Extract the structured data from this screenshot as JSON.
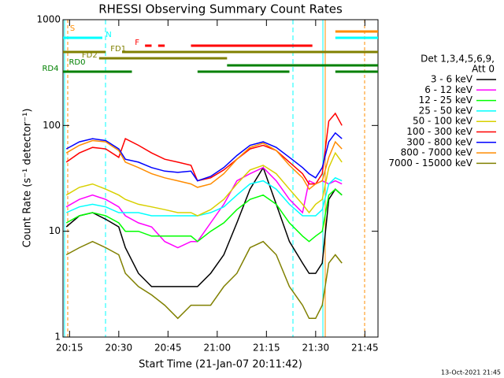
{
  "chart_data": {
    "type": "line",
    "title": "RHESSI Observing Summary Count Rates",
    "xlabel": "Start Time (21-Jan-07 20:11:42)",
    "ylabel": "Count Rate (s⁻¹ detector⁻¹)",
    "footer": "13-Oct-2021 21:45",
    "log_y": true,
    "legend_title": [
      "Det 1,3,4,5,6,9,",
      "Att 0"
    ],
    "xlim": [
      "20:13",
      "21:49"
    ],
    "xticks": [
      "20:15",
      "20:30",
      "20:45",
      "21:00",
      "21:15",
      "21:30",
      "21:45"
    ],
    "ylim": [
      1,
      1000
    ],
    "yticks": [
      1,
      10,
      100,
      1000
    ],
    "x": [
      "20:14",
      "20:18",
      "20:22",
      "20:26",
      "20:30",
      "20:32",
      "20:36",
      "20:40",
      "20:44",
      "20:48",
      "20:52",
      "20:54",
      "20:58",
      "21:02",
      "21:06",
      "21:10",
      "21:14",
      "21:18",
      "21:22",
      "21:26",
      "21:28",
      "21:30",
      "21:32",
      "21:34",
      "21:36",
      "21:38"
    ],
    "series": [
      {
        "name": "3 - 6 keV",
        "color": "#000000",
        "values": [
          11,
          14,
          15,
          13,
          11,
          7,
          4,
          3,
          3,
          3,
          3,
          3,
          4,
          6,
          12,
          25,
          40,
          18,
          8,
          5,
          4,
          4,
          5,
          20,
          25,
          22
        ]
      },
      {
        "name": "6 - 12 keV",
        "color": "#ff00ff",
        "values": [
          17,
          20,
          22,
          20,
          17,
          14,
          12,
          11,
          8,
          7,
          8,
          8,
          12,
          18,
          30,
          35,
          40,
          30,
          20,
          15,
          30,
          28,
          30,
          28,
          30,
          28
        ]
      },
      {
        "name": "12 - 25 keV",
        "color": "#00ff00",
        "values": [
          12,
          14,
          15,
          14,
          12,
          10,
          10,
          9,
          9,
          9,
          9,
          8,
          10,
          12,
          16,
          20,
          22,
          18,
          12,
          9,
          8,
          9,
          10,
          22,
          25,
          22
        ]
      },
      {
        "name": "25 - 50 keV",
        "color": "#00ffff",
        "values": [
          15,
          17,
          18,
          17,
          15,
          15,
          15,
          14,
          14,
          14,
          14,
          14,
          15,
          17,
          22,
          28,
          30,
          25,
          18,
          14,
          14,
          14,
          16,
          28,
          32,
          30
        ]
      },
      {
        "name": "50 - 100 keV",
        "color": "#d8d000",
        "values": [
          22,
          26,
          28,
          25,
          22,
          20,
          18,
          17,
          16,
          15,
          15,
          14,
          16,
          20,
          28,
          38,
          42,
          35,
          25,
          18,
          15,
          18,
          20,
          40,
          55,
          45
        ]
      },
      {
        "name": "100 - 300 keV",
        "color": "#ff0000",
        "values": [
          45,
          55,
          62,
          60,
          50,
          75,
          65,
          55,
          48,
          45,
          42,
          30,
          32,
          38,
          48,
          60,
          65,
          58,
          45,
          35,
          28,
          28,
          35,
          110,
          130,
          100
        ]
      },
      {
        "name": "300 - 800 keV",
        "color": "#0000ff",
        "values": [
          60,
          70,
          75,
          72,
          60,
          48,
          45,
          40,
          37,
          36,
          37,
          30,
          33,
          40,
          52,
          65,
          70,
          62,
          50,
          40,
          35,
          32,
          40,
          70,
          85,
          75
        ]
      },
      {
        "name": "800 - 7000 keV",
        "color": "#ff8c00",
        "values": [
          55,
          65,
          72,
          70,
          58,
          45,
          40,
          35,
          32,
          30,
          28,
          26,
          28,
          35,
          48,
          62,
          68,
          58,
          42,
          32,
          25,
          28,
          30,
          50,
          70,
          60
        ]
      },
      {
        "name": "7000 - 15000 keV",
        "color": "#808000",
        "values": [
          6,
          7,
          8,
          7,
          6,
          4,
          3,
          2.5,
          2,
          1.5,
          2,
          2,
          2,
          3,
          4,
          7,
          8,
          6,
          3,
          2,
          1.5,
          1.5,
          2,
          5,
          6,
          5
        ]
      }
    ],
    "flags": [
      {
        "label": "S",
        "color": "#ff8c00",
        "segments": [
          [
            "21:36",
            "21:49"
          ]
        ]
      },
      {
        "label": "N",
        "color": "#00ffff",
        "segments": [
          [
            "20:13",
            "20:25"
          ],
          [
            "21:36",
            "21:49"
          ]
        ]
      },
      {
        "label": "F",
        "color": "#ff0000",
        "segments": [
          [
            "20:38",
            "20:40"
          ],
          [
            "20:42",
            "20:44"
          ],
          [
            "20:52",
            "21:29"
          ]
        ]
      },
      {
        "label": "FD1",
        "color": "#808000",
        "segments": [
          [
            "20:13",
            "20:26"
          ],
          [
            "20:31",
            "21:49"
          ]
        ]
      },
      {
        "label": "FD2",
        "color": "#808000",
        "segments": [
          [
            "20:24",
            "21:03"
          ]
        ]
      },
      {
        "label": "RD0",
        "color": "#008000",
        "segments": [
          [
            "21:03",
            "21:49"
          ]
        ]
      },
      {
        "label": "RD4",
        "color": "#008000",
        "segments": [
          [
            "20:13",
            "20:34"
          ],
          [
            "20:54",
            "21:22"
          ],
          [
            "21:36",
            "21:49"
          ]
        ]
      }
    ]
  }
}
